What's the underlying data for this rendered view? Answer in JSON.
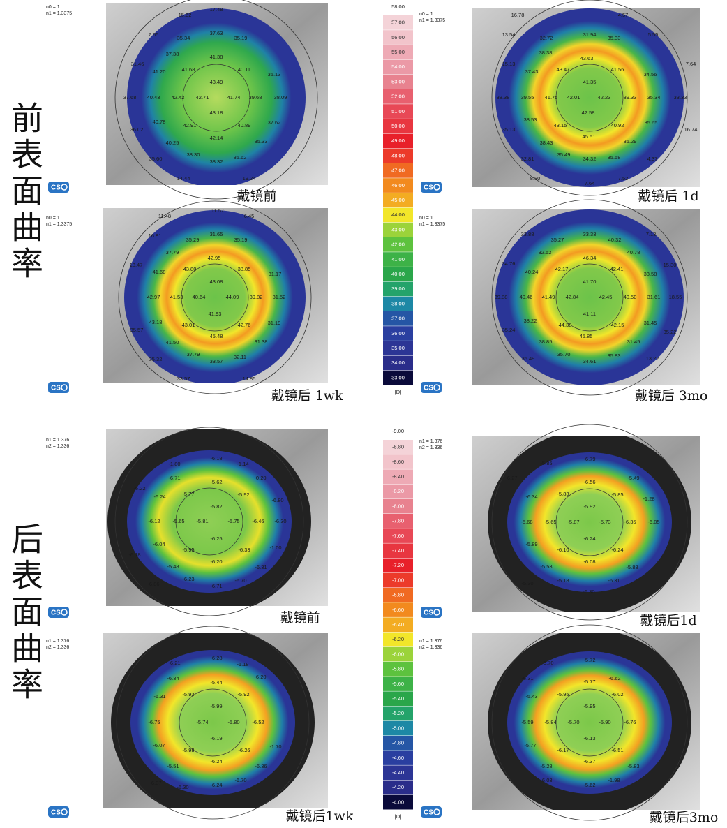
{
  "logo": "CS",
  "scale_colors": [
    "#f4d3d8",
    "#f2c4cb",
    "#eeaab5",
    "#eb99a6",
    "#e8828f",
    "#e8606f",
    "#e84856",
    "#e83640",
    "#e8202a",
    "#ec3a2a",
    "#f06a22",
    "#f28a1e",
    "#f3ac22",
    "#f2e62a",
    "#9bd33a",
    "#5dc23e",
    "#3db247",
    "#2aa64a",
    "#24a36a",
    "#1d88a5",
    "#2556a5",
    "#2a3fa0",
    "#2c3595",
    "#2a2d8a",
    "#0a0a3a"
  ],
  "front": {
    "label": "前表面曲率",
    "scale": {
      "top": "58.00",
      "bands": [
        "57.00",
        "56.00",
        "55.00",
        "54.00",
        "53.00",
        "52.00",
        "51.00",
        "50.00",
        "49.00",
        "48.00",
        "47.00",
        "46.00",
        "45.00",
        "44.00",
        "43.00",
        "42.00",
        "41.00",
        "40.00",
        "39.00",
        "38.00",
        "37.00",
        "36.00",
        "35.00",
        "34.00",
        "33.00"
      ],
      "unit": "[D]"
    },
    "maps": [
      {
        "params": [
          "n0 = 1",
          "n1 = 1.3375"
        ],
        "caption": "戴镜前",
        "readings": [
          "17.48",
          "15.62",
          "7.65",
          "35.34",
          "37.63",
          "35.19",
          "37.38",
          "41.38",
          "31.46",
          "41.20",
          "41.68",
          "40.11",
          "35.13",
          "43.49",
          "37.68",
          "40.43",
          "42.42",
          "42.71",
          "41.74",
          "39.68",
          "38.09",
          "43.18",
          "40.78",
          "42.91",
          "40.89",
          "37.62",
          "36.02",
          "40.25",
          "42.14",
          "35.33",
          "35.60",
          "38.30",
          "38.32",
          "35.62",
          "14.44",
          "19.24"
        ]
      },
      {
        "params": [
          "n0 = 1",
          "n1 = 1.3375"
        ],
        "caption": "戴镜后 1d",
        "readings": [
          "16.78",
          "4.57",
          "13.54",
          "32.72",
          "31.94",
          "35.33",
          "5.55",
          "38.38",
          "43.63",
          "15.13",
          "37.43",
          "43.47",
          "41.56",
          "34.56",
          "7.64",
          "41.35",
          "38.38",
          "39.55",
          "41.75",
          "42.01",
          "42.23",
          "39.33",
          "35.34",
          "33.33",
          "42.58",
          "38.53",
          "43.15",
          "40.92",
          "35.65",
          "35.13",
          "16.74",
          "45.51",
          "38.43",
          "35.29",
          "35.49",
          "34.32",
          "35.58",
          "32.81",
          "4.37",
          "8.80",
          "7.64",
          "7.52"
        ]
      },
      {
        "params": [
          "n0 = 1",
          "n1 = 1.3375"
        ],
        "caption": "戴镜后 1wk",
        "readings": [
          "11.57",
          "11.48",
          "6.45",
          "16.81",
          "35.29",
          "31.65",
          "35.19",
          "37.79",
          "42.95",
          "18.47",
          "41.68",
          "43.80",
          "38.85",
          "31.17",
          "43.08",
          "42.97",
          "41.53",
          "40.64",
          "44.09",
          "39.82",
          "31.52",
          "41.93",
          "43.18",
          "43.01",
          "42.76",
          "31.19",
          "35.57",
          "41.50",
          "45.48",
          "31.38",
          "35.32",
          "37.79",
          "33.57",
          "32.11",
          "33.57",
          "14.85"
        ]
      },
      {
        "params": [
          "n0 = 1",
          "n1 = 1.3375"
        ],
        "caption": "戴镜后 3mo",
        "readings": [
          "33.88",
          "35.27",
          "33.33",
          "40.32",
          "7.13",
          "32.52",
          "46.34",
          "40.78",
          "34.76",
          "40.24",
          "42.17",
          "42.41",
          "15.30",
          "33.58",
          "41.70",
          "39.88",
          "40.46",
          "41.49",
          "42.84",
          "42.45",
          "40.50",
          "31.61",
          "18.55",
          "41.11",
          "38.22",
          "44.38",
          "42.15",
          "31.45",
          "35.24",
          "45.85",
          "38.85",
          "35.22",
          "31.45",
          "35.70",
          "34.61",
          "35.83",
          "35.49",
          "13.22"
        ]
      }
    ]
  },
  "back": {
    "label": "后表面曲率",
    "scale": {
      "top": "-9.00",
      "bands": [
        "-8.80",
        "-8.60",
        "-8.40",
        "-8.20",
        "-8.00",
        "-7.80",
        "-7.60",
        "-7.40",
        "-7.20",
        "-7.00",
        "-6.80",
        "-6.60",
        "-6.40",
        "-6.20",
        "-6.00",
        "-5.80",
        "-5.60",
        "-5.40",
        "-5.20",
        "-5.00",
        "-4.80",
        "-4.60",
        "-4.40",
        "-4.20",
        "-4.00"
      ],
      "unit": "[D]"
    },
    "maps": [
      {
        "params": [
          "n1 = 1.376",
          "n2 = 1.336"
        ],
        "caption": "戴镜前",
        "readings": [
          "-1.80",
          "-6.18",
          "-1.14",
          "-6.71",
          "-5.62",
          "-0.20",
          "-5.92",
          "-6.24",
          "-5.77",
          "-6.22",
          "-5.82",
          "-6.80",
          "-6.12",
          "-5.65",
          "-5.81",
          "-5.75",
          "-6.46",
          "-6.30",
          "-6.25",
          "-6.04",
          "-6.33",
          "-1.00",
          "-6.18",
          "-5.95",
          "-6.20",
          "-5.48",
          "-6.31",
          "-6.23",
          "-6.71",
          "-6.70",
          "-6.86"
        ]
      },
      {
        "params": [
          "n1 = 1.376",
          "n2 = 1.336"
        ],
        "caption": "戴镜后1d",
        "readings": [
          "-5.85",
          "-6.79",
          "-6.27",
          "-6.56",
          "-5.49",
          "-6.34",
          "-5.83",
          "-5.85",
          "-1.28",
          "-5.92",
          "-5.68",
          "-5.65",
          "-5.87",
          "-5.73",
          "-6.35",
          "-6.05",
          "-6.24",
          "-5.89",
          "-6.10",
          "-6.24",
          "-6.08",
          "-5.53",
          "-6.31",
          "-5.18",
          "-6.30",
          "-5.30",
          "-5.88"
        ]
      },
      {
        "params": [
          "n1 = 1.376",
          "n2 = 1.336"
        ],
        "caption": "戴镜后1wk",
        "readings": [
          "-6.21",
          "-6.28",
          "-1.18",
          "-6.34",
          "-5.44",
          "-6.20",
          "-6.31",
          "-5.93",
          "-5.92",
          "-5.99",
          "-6.75",
          "-5.74",
          "-5.80",
          "-6.52",
          "-6.19",
          "-6.07",
          "-5.98",
          "-6.26",
          "-1.70",
          "-6.24",
          "-5.51",
          "-6.36",
          "-6.37",
          "-6.70",
          "-6.24",
          "-6.30"
        ]
      },
      {
        "params": [
          "n1 = 1.376",
          "n2 = 1.336"
        ],
        "caption": "戴镜后3mo",
        "readings": [
          "-6.70",
          "-5.72",
          "-6.31",
          "-5.77",
          "-6.62",
          "-5.43",
          "-5.95",
          "-6.02",
          "-5.95",
          "-5.59",
          "-5.84",
          "-5.70",
          "-5.90",
          "-6.76",
          "-6.13",
          "-5.77",
          "-6.17",
          "-6.51",
          "-6.37",
          "-5.28",
          "-5.83",
          "-6.03",
          "-5.62",
          "-1.98"
        ]
      }
    ]
  }
}
